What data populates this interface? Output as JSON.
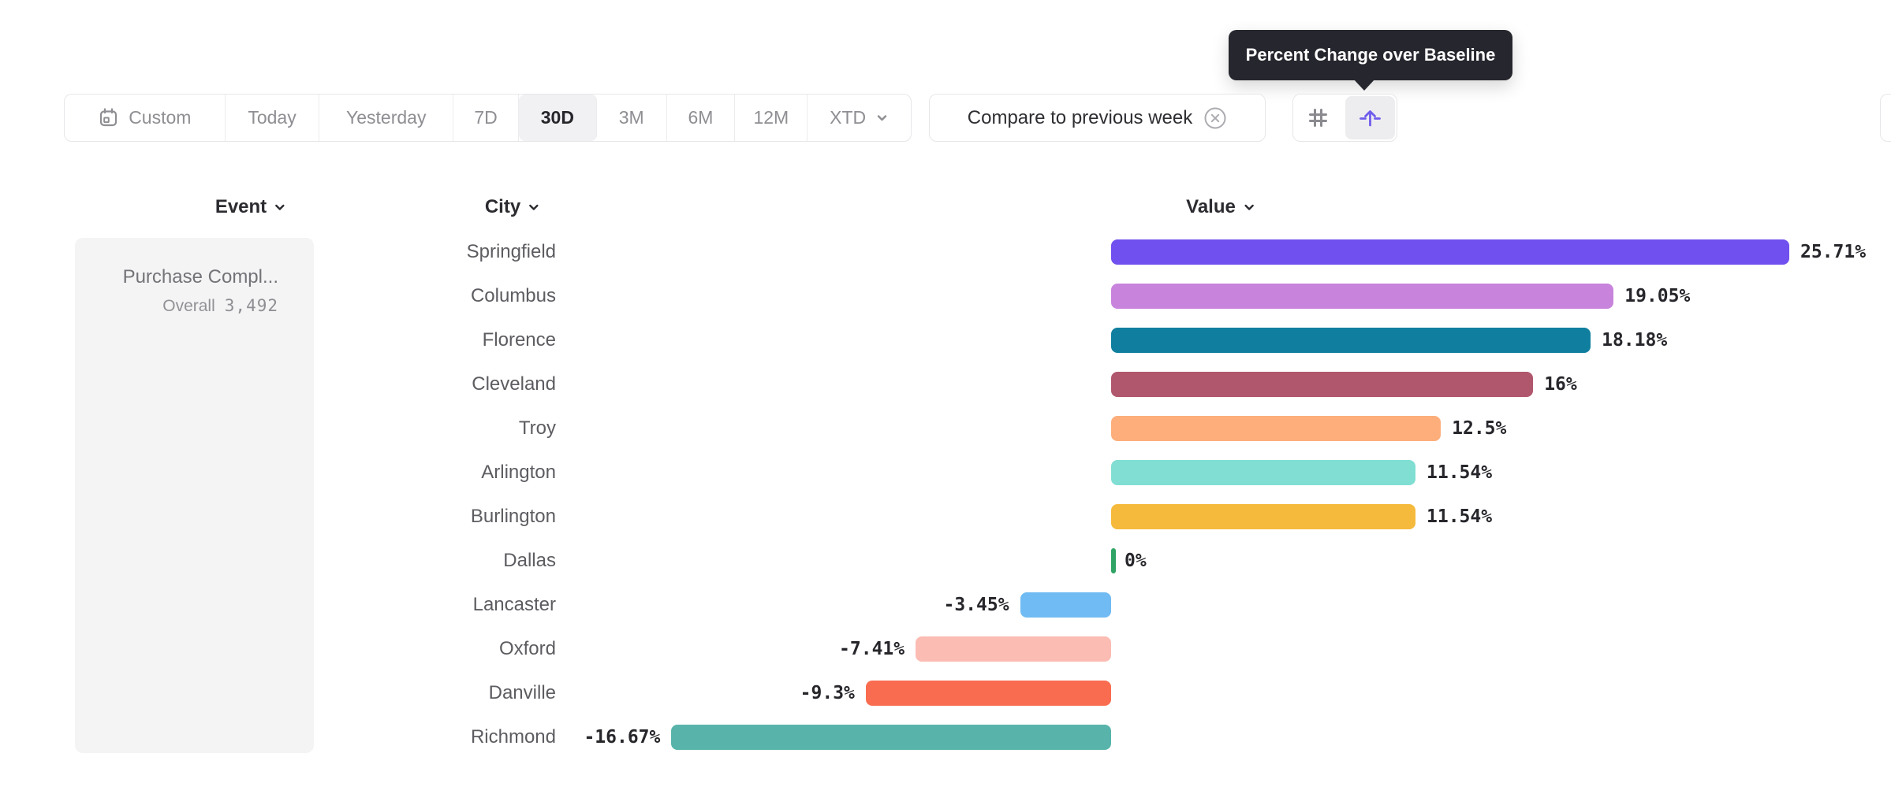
{
  "tooltip": {
    "text": "Percent Change over Baseline"
  },
  "toolbar": {
    "items": [
      {
        "label": "Custom",
        "icon": "calendar-icon",
        "selected": false
      },
      {
        "label": "Today",
        "selected": false
      },
      {
        "label": "Yesterday",
        "selected": false
      },
      {
        "label": "7D",
        "selected": false
      },
      {
        "label": "30D",
        "selected": true
      },
      {
        "label": "3M",
        "selected": false
      },
      {
        "label": "6M",
        "selected": false
      },
      {
        "label": "12M",
        "selected": false
      },
      {
        "label": "XTD",
        "icon": "chevron-down-icon",
        "selected": false
      }
    ]
  },
  "compare_chip": {
    "label": "Compare to previous week",
    "close_icon": "circle-x-icon"
  },
  "view_toggle": {
    "buttons": [
      {
        "icon": "hash-icon",
        "selected": false
      },
      {
        "icon": "baseline-arrow-icon",
        "selected": true,
        "tooltip": "Percent Change over Baseline"
      }
    ]
  },
  "columns": {
    "event": "Event",
    "city": "City",
    "value": "Value"
  },
  "event_card": {
    "title": "Purchase Compl...",
    "subtitle_label": "Overall",
    "subtitle_value": "3,492"
  },
  "chart_data": {
    "type": "bar",
    "orientation": "horizontal",
    "title": "",
    "xlabel": "Value (percent change over baseline)",
    "ylabel": "City",
    "baseline": 0,
    "categories": [
      "Springfield",
      "Columbus",
      "Florence",
      "Cleveland",
      "Troy",
      "Arlington",
      "Burlington",
      "Dallas",
      "Lancaster",
      "Oxford",
      "Danville",
      "Richmond"
    ],
    "values": [
      25.71,
      19.05,
      18.18,
      16,
      12.5,
      11.54,
      11.54,
      0,
      -3.45,
      -7.41,
      -9.3,
      -16.67
    ],
    "labels": [
      "25.71%",
      "19.05%",
      "18.18%",
      "16%",
      "12.5%",
      "11.54%",
      "11.54%",
      "0%",
      "-3.45%",
      "-7.41%",
      "-9.3%",
      "-16.67%"
    ],
    "colors": [
      "#7050EE",
      "#C884DC",
      "#107F9F",
      "#B0576D",
      "#FDAE7B",
      "#80DED3",
      "#F5BA3C",
      "#30A465",
      "#70BBF3",
      "#FBBCB4",
      "#F96C50",
      "#58B4AA"
    ]
  }
}
